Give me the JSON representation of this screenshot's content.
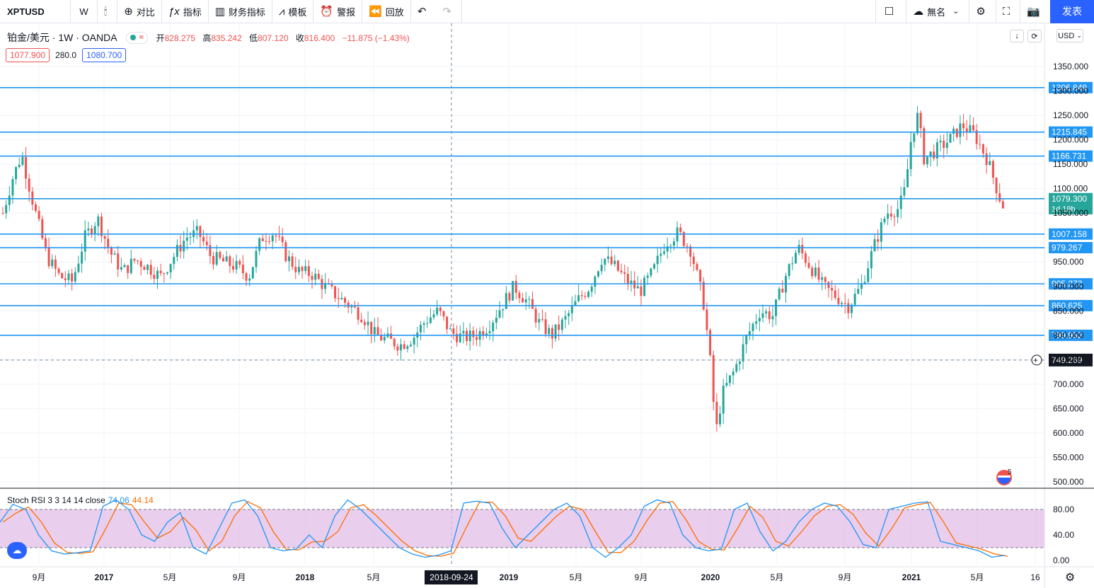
{
  "toolbar": {
    "symbol": "XPTUSD",
    "interval": "W",
    "compare": "对比",
    "indicators": "指标",
    "financials": "财务指标",
    "templates": "模板",
    "alert": "警报",
    "replay": "回放",
    "layout_name": "無名",
    "publish": "发表"
  },
  "legend": {
    "title": "铂金/美元 · 1W · OANDA",
    "open_label": "开",
    "open": "828.275",
    "high_label": "高",
    "high": "835.242",
    "low_label": "低",
    "low": "807.120",
    "close_label": "收",
    "close": "816.400",
    "change": "−11.875 (−1.43%)",
    "sell_price": "1077.900",
    "spread": "280.0",
    "buy_price": "1080.700"
  },
  "currency": "USD",
  "rsi_legend": {
    "name": "Stoch RSI 3 3 14 14 close",
    "k": "74.06",
    "d": "44.14"
  },
  "crosshair_date": "2018-09-24",
  "crosshair_price": "749.269",
  "current_price": "1079.300",
  "countdown": "1d 19h",
  "flag_count": "5",
  "colors": {
    "up": "#26a69a",
    "down": "#ef5350",
    "level": "#2196f3",
    "rsi_k": "#2196f3",
    "rsi_d": "#ff6d00",
    "rsi_band": "#e1bee7"
  },
  "chart_data": {
    "type": "candlestick",
    "symbol": "XPTUSD",
    "timeframe": "1W",
    "y_axis_ticks": [
      "1350.000",
      "1300.000",
      "1250.000",
      "1200.000",
      "1150.000",
      "1100.000",
      "1050.000",
      "950.000",
      "900.000",
      "850.000",
      "800.000",
      "750.000",
      "700.000",
      "650.000",
      "600.000",
      "550.000",
      "500.000"
    ],
    "x_axis_labels": [
      "9月",
      "2017",
      "5月",
      "9月",
      "2018",
      "5月",
      "2019",
      "5月",
      "9月",
      "2020",
      "5月",
      "9月",
      "2021",
      "5月",
      "16"
    ],
    "horizontal_levels": [
      "1306.849",
      "1215.845",
      "1166.731",
      "1079.508",
      "1007.158",
      "979.267",
      "905.272",
      "860.625",
      "799.952"
    ],
    "price_path": [
      [
        0,
        1050
      ],
      [
        3,
        1120
      ],
      [
        6,
        1170
      ],
      [
        10,
        1060
      ],
      [
        14,
        960
      ],
      [
        18,
        920
      ],
      [
        22,
        910
      ],
      [
        26,
        1000
      ],
      [
        30,
        1040
      ],
      [
        34,
        970
      ],
      [
        38,
        930
      ],
      [
        42,
        955
      ],
      [
        46,
        940
      ],
      [
        50,
        920
      ],
      [
        54,
        960
      ],
      [
        58,
        1000
      ],
      [
        62,
        1010
      ],
      [
        66,
        960
      ],
      [
        70,
        950
      ],
      [
        74,
        940
      ],
      [
        78,
        920
      ],
      [
        82,
        1000
      ],
      [
        86,
        1010
      ],
      [
        90,
        960
      ],
      [
        94,
        930
      ],
      [
        98,
        925
      ],
      [
        102,
        900
      ],
      [
        106,
        880
      ],
      [
        110,
        860
      ],
      [
        114,
        840
      ],
      [
        118,
        800
      ],
      [
        122,
        790
      ],
      [
        126,
        780
      ],
      [
        130,
        795
      ],
      [
        134,
        830
      ],
      [
        138,
        850
      ],
      [
        142,
        805
      ],
      [
        146,
        795
      ],
      [
        150,
        800
      ],
      [
        154,
        820
      ],
      [
        158,
        860
      ],
      [
        162,
        900
      ],
      [
        166,
        870
      ],
      [
        170,
        825
      ],
      [
        174,
        800
      ],
      [
        178,
        830
      ],
      [
        182,
        870
      ],
      [
        186,
        900
      ],
      [
        190,
        960
      ],
      [
        194,
        940
      ],
      [
        198,
        910
      ],
      [
        202,
        890
      ],
      [
        206,
        930
      ],
      [
        210,
        990
      ],
      [
        214,
        1010
      ],
      [
        218,
        975
      ],
      [
        222,
        870
      ],
      [
        224,
        760
      ],
      [
        226,
        600
      ],
      [
        228,
        680
      ],
      [
        232,
        730
      ],
      [
        236,
        800
      ],
      [
        240,
        850
      ],
      [
        244,
        840
      ],
      [
        248,
        920
      ],
      [
        252,
        980
      ],
      [
        256,
        940
      ],
      [
        260,
        900
      ],
      [
        264,
        880
      ],
      [
        268,
        860
      ],
      [
        272,
        900
      ],
      [
        276,
        980
      ],
      [
        280,
        1050
      ],
      [
        284,
        1060
      ],
      [
        286,
        1100
      ],
      [
        288,
        1210
      ],
      [
        290,
        1250
      ],
      [
        292,
        1160
      ],
      [
        296,
        1180
      ],
      [
        300,
        1200
      ],
      [
        304,
        1230
      ],
      [
        308,
        1210
      ],
      [
        312,
        1160
      ],
      [
        316,
        1080
      ],
      [
        318,
        1050
      ]
    ],
    "stoch_rsi": {
      "k_last": 74.06,
      "d_last": 44.14,
      "bands": [
        20,
        80
      ],
      "ticks": [
        "80.00",
        "40.00",
        "0.00"
      ],
      "k": [
        60,
        88,
        80,
        40,
        15,
        10,
        12,
        15,
        85,
        95,
        80,
        40,
        30,
        60,
        75,
        20,
        10,
        50,
        90,
        95,
        70,
        20,
        15,
        18,
        40,
        20,
        70,
        95,
        80,
        60,
        40,
        20,
        10,
        5,
        8,
        15,
        90,
        93,
        90,
        50,
        20,
        40,
        60,
        80,
        90,
        70,
        20,
        5,
        20,
        40,
        85,
        95,
        90,
        40,
        20,
        15,
        18,
        80,
        90,
        45,
        15,
        30,
        60,
        80,
        90,
        85,
        60,
        25,
        20,
        80,
        85,
        90,
        92,
        30,
        25,
        20,
        15,
        5,
        8
      ]
    }
  }
}
